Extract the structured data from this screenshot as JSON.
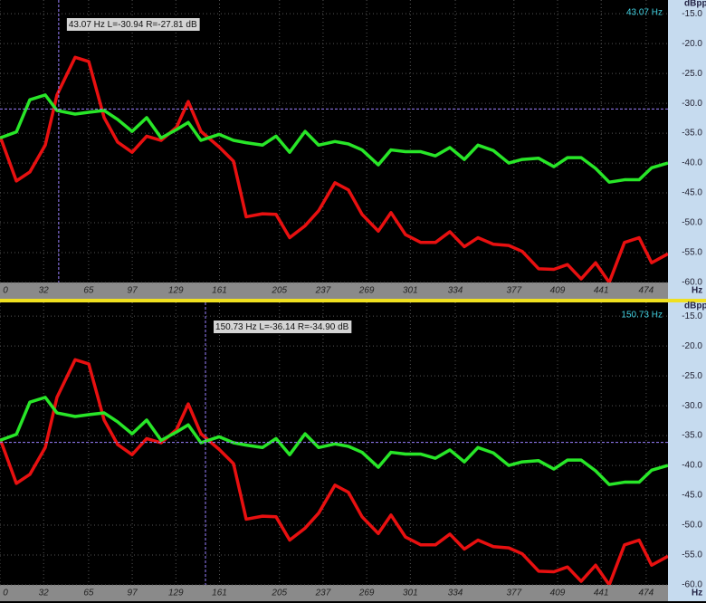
{
  "chart_data": [
    {
      "type": "line",
      "y_unit": "dBpp",
      "x_unit": "Hz",
      "x": [
        0,
        12,
        21.9,
        33.2,
        41.8,
        55.1,
        65.1,
        76.4,
        86.3,
        96.9,
        107.6,
        118.2,
        129.5,
        138.1,
        147.4,
        160.7,
        171.3,
        180.6,
        192.5,
        202.5,
        212.5,
        223.8,
        233.7,
        245.7,
        255.6,
        265.6,
        277.5,
        286.8,
        297.5,
        308.7,
        319.4,
        330,
        340.6,
        350.6,
        361.9,
        373.2,
        383.1,
        395.1,
        406.3,
        416.3,
        426.3,
        436.9,
        446.9,
        458.1,
        468.8,
        478,
        490
      ],
      "series": [
        {
          "color": "#e81010",
          "values": [
            -35.5,
            -43,
            -41.5,
            -37,
            -28.6,
            -22.3,
            -23,
            -32.4,
            -36.5,
            -38.2,
            -35.5,
            -36.2,
            -34,
            -29.7,
            -34.7,
            -37.3,
            -39.7,
            -49,
            -48.5,
            -48.6,
            -52.5,
            -50.5,
            -48,
            -43.3,
            -44.5,
            -48.6,
            -51.4,
            -48.3,
            -52,
            -53.3,
            -53.3,
            -51.5,
            -54,
            -52.5,
            -53.6,
            -53.8,
            -54.8,
            -57.7,
            -57.8,
            -57,
            -59.4,
            -56.7,
            -60,
            -53.3,
            -52.5,
            -56.7,
            -55.2
          ]
        },
        {
          "color": "#28e628",
          "values": [
            -35.8,
            -34.8,
            -29.4,
            -28.6,
            -31.2,
            -31.8,
            -31.5,
            -31.2,
            -32.7,
            -34.7,
            -32.4,
            -35.8,
            -34.4,
            -33.2,
            -36.2,
            -35.2,
            -36.2,
            -36.6,
            -37,
            -35.5,
            -38.2,
            -34.7,
            -37,
            -36.4,
            -36.8,
            -37.8,
            -40.3,
            -37.8,
            -38.1,
            -38.1,
            -38.8,
            -37.4,
            -39.4,
            -37,
            -37.9,
            -40,
            -39.4,
            -39.2,
            -40.6,
            -39.1,
            -39.1,
            -40.9,
            -43.2,
            -42.8,
            -42.8,
            -40.8,
            -40
          ]
        }
      ],
      "xlim": [
        0,
        490
      ],
      "ylim": [
        -60,
        -12.7
      ],
      "xticks": [
        0,
        32,
        65,
        97,
        129,
        161,
        205,
        237,
        269,
        301,
        334,
        377,
        409,
        441,
        474
      ],
      "yticks": [
        {
          "value": -15,
          "label": "-15.0"
        },
        {
          "value": -20,
          "label": "-20.0"
        },
        {
          "value": -25,
          "label": "-25.0"
        },
        {
          "value": -30,
          "label": "-30.0"
        },
        {
          "value": -35,
          "label": "-35.0"
        },
        {
          "value": -40,
          "label": "-40.0"
        },
        {
          "value": -45,
          "label": "-45.0"
        },
        {
          "value": -50,
          "label": "-50.0"
        },
        {
          "value": -55,
          "label": "-55.0"
        },
        {
          "value": -60,
          "label": "-60.0"
        }
      ],
      "grid": true,
      "cursor": {
        "x": 43.07,
        "y": -30.94,
        "freq_label": "43.07 Hz",
        "readout": "43.07 Hz L=-30.94 R=-27.81 dB"
      }
    },
    {
      "type": "line",
      "y_unit": "dBpp",
      "x_unit": "Hz",
      "x": [
        0,
        12,
        21.9,
        33.2,
        41.8,
        55.1,
        65.1,
        76.4,
        86.3,
        96.9,
        107.6,
        118.2,
        129.5,
        138.1,
        147.4,
        160.7,
        171.3,
        180.6,
        192.5,
        202.5,
        212.5,
        223.8,
        233.7,
        245.7,
        255.6,
        265.6,
        277.5,
        286.8,
        297.5,
        308.7,
        319.4,
        330,
        340.6,
        350.6,
        361.9,
        373.2,
        383.1,
        395.1,
        406.3,
        416.3,
        426.3,
        436.9,
        446.9,
        458.1,
        468.8,
        478,
        490
      ],
      "series": [
        {
          "color": "#e81010",
          "values": [
            -35.5,
            -43,
            -41.5,
            -37,
            -28.6,
            -22.3,
            -23,
            -32.4,
            -36.5,
            -38.2,
            -35.5,
            -36.2,
            -34,
            -29.7,
            -34.7,
            -37.3,
            -39.7,
            -49,
            -48.5,
            -48.6,
            -52.5,
            -50.5,
            -48,
            -43.3,
            -44.5,
            -48.6,
            -51.4,
            -48.3,
            -52,
            -53.3,
            -53.3,
            -51.5,
            -54,
            -52.5,
            -53.6,
            -53.8,
            -54.8,
            -57.7,
            -57.8,
            -57,
            -59.4,
            -56.7,
            -60,
            -53.3,
            -52.5,
            -56.7,
            -55.2
          ]
        },
        {
          "color": "#28e628",
          "values": [
            -35.8,
            -34.8,
            -29.4,
            -28.6,
            -31.2,
            -31.8,
            -31.5,
            -31.2,
            -32.7,
            -34.7,
            -32.4,
            -35.8,
            -34.4,
            -33.2,
            -36.2,
            -35.2,
            -36.2,
            -36.6,
            -37,
            -35.5,
            -38.2,
            -34.7,
            -37,
            -36.4,
            -36.8,
            -37.8,
            -40.3,
            -37.8,
            -38.1,
            -38.1,
            -38.8,
            -37.4,
            -39.4,
            -37,
            -37.9,
            -40,
            -39.4,
            -39.2,
            -40.6,
            -39.1,
            -39.1,
            -40.9,
            -43.2,
            -42.8,
            -42.8,
            -40.8,
            -40
          ]
        }
      ],
      "xlim": [
        0,
        490
      ],
      "ylim": [
        -60,
        -12.7
      ],
      "xticks": [
        0,
        32,
        65,
        97,
        129,
        161,
        205,
        237,
        269,
        301,
        334,
        377,
        409,
        441,
        474
      ],
      "yticks": [
        {
          "value": -15,
          "label": "-15.0"
        },
        {
          "value": -20,
          "label": "-20.0"
        },
        {
          "value": -25,
          "label": "-25.0"
        },
        {
          "value": -30,
          "label": "-30.0"
        },
        {
          "value": -35,
          "label": "-35.0"
        },
        {
          "value": -40,
          "label": "-40.0"
        },
        {
          "value": -45,
          "label": "-45.0"
        },
        {
          "value": -50,
          "label": "-50.0"
        },
        {
          "value": -55,
          "label": "-55.0"
        },
        {
          "value": -60,
          "label": "-60.0"
        }
      ],
      "grid": true,
      "cursor": {
        "x": 150.73,
        "y": -36.14,
        "freq_label": "150.73 Hz",
        "readout": "150.73 Hz L=-36.14 R=-34.90 dB"
      }
    }
  ]
}
